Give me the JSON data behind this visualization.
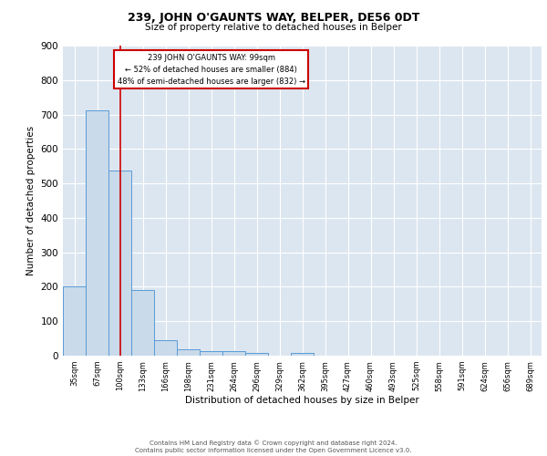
{
  "title1": "239, JOHN O'GAUNTS WAY, BELPER, DE56 0DT",
  "title2": "Size of property relative to detached houses in Belper",
  "xlabel": "Distribution of detached houses by size in Belper",
  "ylabel": "Number of detached properties",
  "footer1": "Contains HM Land Registry data © Crown copyright and database right 2024.",
  "footer2": "Contains public sector information licensed under the Open Government Licence v3.0.",
  "bin_labels": [
    "35sqm",
    "67sqm",
    "100sqm",
    "133sqm",
    "166sqm",
    "198sqm",
    "231sqm",
    "264sqm",
    "296sqm",
    "329sqm",
    "362sqm",
    "395sqm",
    "427sqm",
    "460sqm",
    "493sqm",
    "525sqm",
    "558sqm",
    "591sqm",
    "624sqm",
    "656sqm",
    "689sqm"
  ],
  "bar_values": [
    202,
    712,
    537,
    191,
    46,
    18,
    14,
    13,
    9,
    0,
    9,
    0,
    0,
    0,
    0,
    0,
    0,
    0,
    0,
    0,
    0
  ],
  "bar_color": "#c9daea",
  "bar_edge_color": "#5b9bd5",
  "background_color": "#dce6f1",
  "grid_color": "#ffffff",
  "annotation_box_text": [
    "239 JOHN O'GAUNTS WAY: 99sqm",
    "← 52% of detached houses are smaller (884)",
    "48% of semi-detached houses are larger (832) →"
  ],
  "annotation_box_color": "#ffffff",
  "annotation_box_edge_color": "#cc0000",
  "vline_x": 2,
  "vline_color": "#cc0000",
  "ylim": [
    0,
    900
  ],
  "yticks": [
    0,
    100,
    200,
    300,
    400,
    500,
    600,
    700,
    800,
    900
  ]
}
